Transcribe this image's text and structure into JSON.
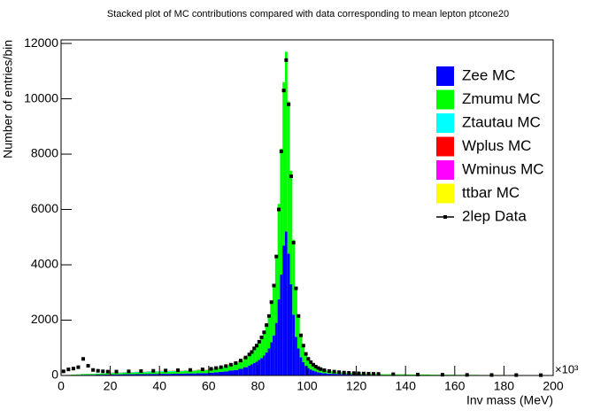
{
  "chart_data": {
    "type": "stacked-histogram",
    "title": "Stacked plot of MC contributions compared with data corresponding to mean lepton ptcone20",
    "x_label": "Inv mass (MeV)",
    "x_exponent": "×10³",
    "y_label": "Number of entries/bin",
    "xlim": [
      0,
      200
    ],
    "xticks": [
      0,
      20,
      40,
      60,
      80,
      100,
      120,
      140,
      160,
      180,
      200
    ],
    "ylim": [
      0,
      12130
    ],
    "yticks": [
      0,
      2000,
      4000,
      6000,
      8000,
      10000,
      12000
    ],
    "legend": "top-right",
    "bins": [
      0,
      2,
      4,
      6,
      8,
      10,
      12,
      14,
      16,
      18,
      20,
      25,
      30,
      35,
      40,
      45,
      50,
      55,
      60,
      62,
      64,
      66,
      68,
      70,
      72,
      74,
      76,
      77,
      78,
      79,
      80,
      81,
      82,
      83,
      84,
      85,
      86,
      87,
      88,
      89,
      90,
      91,
      92,
      93,
      94,
      95,
      96,
      97,
      98,
      99,
      100,
      101,
      102,
      103,
      104,
      105,
      106,
      108,
      110,
      112,
      114,
      116,
      118,
      120,
      122,
      124,
      126,
      128,
      130,
      140,
      150,
      160,
      170,
      180,
      190,
      200
    ],
    "series": [
      {
        "name": "Zee MC",
        "color": "#0000ff",
        "values": [
          5,
          10,
          15,
          20,
          25,
          25,
          25,
          30,
          30,
          35,
          40,
          45,
          50,
          55,
          60,
          65,
          75,
          85,
          100,
          115,
          130,
          150,
          175,
          200,
          240,
          300,
          360,
          400,
          450,
          500,
          560,
          630,
          720,
          830,
          980,
          1200,
          1450,
          1900,
          2750,
          3650,
          4700,
          5200,
          4400,
          3300,
          2200,
          1400,
          980,
          660,
          480,
          350,
          270,
          220,
          175,
          145,
          120,
          105,
          85,
          70,
          60,
          52,
          45,
          40,
          36,
          33,
          30,
          28,
          26,
          24,
          20,
          15,
          12,
          10,
          8,
          6,
          5
        ]
      },
      {
        "name": "Zmumu MC",
        "color": "#00ff00",
        "values": [
          5,
          10,
          15,
          20,
          25,
          30,
          30,
          35,
          40,
          45,
          50,
          55,
          60,
          65,
          75,
          80,
          90,
          105,
          125,
          140,
          160,
          185,
          210,
          245,
          290,
          360,
          440,
          500,
          550,
          600,
          690,
          770,
          880,
          1020,
          1220,
          1500,
          1850,
          2400,
          3450,
          4550,
          5900,
          6500,
          5500,
          4100,
          2700,
          1800,
          1220,
          840,
          620,
          450,
          350,
          280,
          225,
          185,
          160,
          135,
          110,
          90,
          78,
          68,
          60,
          53,
          47,
          43,
          40,
          37,
          34,
          31,
          25,
          20,
          15,
          12,
          10,
          8,
          6
        ]
      },
      {
        "name": "Ztautau MC",
        "color": "#00ffff",
        "values": [
          0,
          0,
          1,
          2,
          3,
          4,
          5,
          6,
          7,
          8,
          10,
          15,
          20,
          25,
          25,
          20,
          15,
          10,
          8,
          7,
          6,
          5,
          4,
          4,
          3,
          3,
          2,
          2,
          2,
          2,
          2,
          2,
          2,
          2,
          2,
          2,
          2,
          2,
          2,
          2,
          2,
          2,
          2,
          2,
          2,
          2,
          2,
          2,
          2,
          2,
          2,
          2,
          2,
          2,
          2,
          2,
          1,
          1,
          1,
          1,
          1,
          1,
          1,
          1,
          1,
          1,
          1,
          1,
          0,
          0,
          0,
          0,
          0,
          0,
          0
        ]
      },
      {
        "name": "Wplus MC",
        "color": "#ff0000",
        "values": [
          1,
          1,
          1,
          1,
          1,
          1,
          1,
          1,
          1,
          1,
          5,
          5,
          5,
          5,
          5,
          5,
          5,
          5,
          4,
          4,
          4,
          4,
          4,
          4,
          4,
          4,
          1,
          1,
          1,
          1,
          1,
          1,
          1,
          1,
          1,
          1,
          1,
          1,
          1,
          1,
          1,
          1,
          1,
          1,
          1,
          1,
          1,
          1,
          1,
          1,
          1,
          1,
          1,
          1,
          1,
          1,
          1,
          1,
          1,
          1,
          1,
          1,
          1,
          1,
          1,
          1,
          1,
          1,
          0,
          0,
          0,
          0,
          0,
          0,
          0
        ]
      },
      {
        "name": "Wminus MC",
        "color": "#ff00ff",
        "values": [
          1,
          1,
          1,
          1,
          1,
          1,
          1,
          1,
          1,
          1,
          4,
          4,
          4,
          4,
          4,
          4,
          4,
          4,
          3,
          3,
          3,
          3,
          3,
          3,
          3,
          3,
          1,
          1,
          1,
          1,
          1,
          1,
          1,
          1,
          1,
          1,
          1,
          1,
          1,
          1,
          1,
          1,
          1,
          1,
          1,
          1,
          1,
          1,
          1,
          1,
          1,
          1,
          1,
          1,
          1,
          1,
          1,
          1,
          1,
          1,
          1,
          1,
          1,
          1,
          1,
          1,
          1,
          1,
          0,
          0,
          0,
          0,
          0,
          0,
          0
        ]
      },
      {
        "name": "ttbar MC",
        "color": "#ffff00",
        "values": [
          0,
          0,
          0,
          0,
          0,
          0,
          0,
          0,
          0,
          0,
          3,
          4,
          5,
          6,
          7,
          8,
          8,
          8,
          8,
          8,
          7,
          7,
          7,
          6,
          6,
          6,
          4,
          4,
          4,
          4,
          4,
          4,
          4,
          4,
          4,
          4,
          4,
          4,
          4,
          4,
          4,
          4,
          4,
          4,
          4,
          4,
          4,
          4,
          4,
          4,
          4,
          4,
          4,
          4,
          4,
          4,
          3,
          3,
          3,
          3,
          3,
          3,
          3,
          3,
          3,
          3,
          3,
          3,
          2,
          2,
          1,
          1,
          1,
          1,
          1
        ]
      }
    ],
    "data": {
      "name": "2lep Data",
      "color": "#000000",
      "values": [
        150,
        220,
        250,
        300,
        600,
        350,
        200,
        170,
        150,
        140,
        140,
        150,
        160,
        170,
        180,
        190,
        200,
        220,
        240,
        270,
        300,
        340,
        390,
        450,
        540,
        650,
        760,
        850,
        980,
        1080,
        1220,
        1380,
        1560,
        1820,
        2150,
        2650,
        3250,
        4300,
        6000,
        8100,
        10300,
        11400,
        9800,
        7200,
        4800,
        3150,
        2150,
        1450,
        1080,
        780,
        600,
        480,
        390,
        320,
        270,
        230,
        190,
        160,
        140,
        120,
        105,
        95,
        85,
        78,
        72,
        66,
        60,
        56,
        45,
        35,
        28,
        22,
        18,
        15,
        12
      ]
    }
  }
}
